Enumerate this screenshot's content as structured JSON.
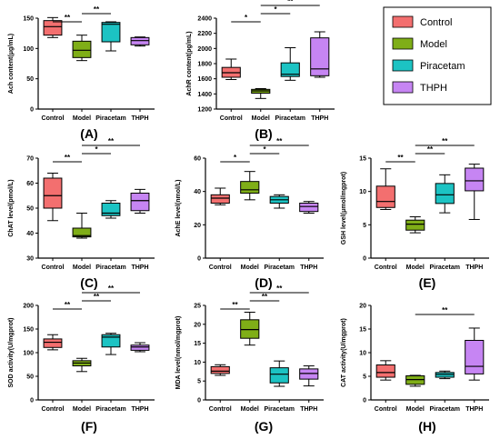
{
  "legend": [
    {
      "name": "Control",
      "color": "#f36f6f"
    },
    {
      "name": "Model",
      "color": "#7fae17"
    },
    {
      "name": "Piracetam",
      "color": "#1cc3c3"
    },
    {
      "name": "THPH",
      "color": "#c685f3"
    }
  ],
  "chart_data": [
    {
      "type": "box",
      "panel": "(A)",
      "ylabel": "Ach content(μg/mL)",
      "ylim": [
        0,
        150
      ],
      "yticks": [
        0,
        50,
        100,
        150
      ],
      "categories": [
        "Control",
        "Model",
        "Piracetam",
        "THPH"
      ],
      "boxes": [
        {
          "min": 118,
          "q1": 122,
          "median": 136,
          "q3": 146,
          "max": 151
        },
        {
          "min": 80,
          "q1": 85,
          "median": 97,
          "q3": 112,
          "max": 122
        },
        {
          "min": 96,
          "q1": 111,
          "median": 140,
          "q3": 143,
          "max": 144
        },
        {
          "min": 104,
          "q1": 106,
          "median": 113,
          "q3": 118,
          "max": 119
        }
      ],
      "significance": [
        {
          "from": 0,
          "to": 1,
          "label": "**",
          "level": 1
        },
        {
          "from": 1,
          "to": 2,
          "label": "**",
          "level": 2
        }
      ]
    },
    {
      "type": "box",
      "panel": "(B)",
      "ylabel": "AchR content(pg/mL)",
      "ylim": [
        1200,
        2400
      ],
      "yticks": [
        1200,
        1400,
        1600,
        1800,
        2000,
        2200,
        2400
      ],
      "categories": [
        "Control",
        "Model",
        "Piracetam",
        "THPH"
      ],
      "boxes": [
        {
          "min": 1590,
          "q1": 1620,
          "median": 1680,
          "q3": 1750,
          "max": 1860
        },
        {
          "min": 1340,
          "q1": 1410,
          "median": 1440,
          "q3": 1460,
          "max": 1470
        },
        {
          "min": 1580,
          "q1": 1630,
          "median": 1660,
          "q3": 1810,
          "max": 2010
        },
        {
          "min": 1620,
          "q1": 1640,
          "median": 1730,
          "q3": 2140,
          "max": 2220
        }
      ],
      "significance": [
        {
          "from": 0,
          "to": 1,
          "label": "*",
          "level": 1
        },
        {
          "from": 1,
          "to": 2,
          "label": "*",
          "level": 2
        },
        {
          "from": 1,
          "to": 3,
          "label": "**",
          "level": 3
        }
      ]
    },
    {
      "type": "box",
      "panel": "(C)",
      "ylabel": "ChAT level(pmol/L)",
      "ylim": [
        30,
        70
      ],
      "yticks": [
        30,
        40,
        50,
        60,
        70
      ],
      "categories": [
        "Control",
        "Model",
        "Piracetam",
        "THPH"
      ],
      "boxes": [
        {
          "min": 45,
          "q1": 50,
          "median": 55,
          "q3": 62,
          "max": 64
        },
        {
          "min": 38,
          "q1": 38.5,
          "median": 39,
          "q3": 42,
          "max": 48
        },
        {
          "min": 46,
          "q1": 47,
          "median": 48,
          "q3": 52,
          "max": 53
        },
        {
          "min": 48,
          "q1": 49,
          "median": 53,
          "q3": 56,
          "max": 57.5
        }
      ],
      "significance": [
        {
          "from": 0,
          "to": 1,
          "label": "**",
          "level": 1
        },
        {
          "from": 1,
          "to": 2,
          "label": "*",
          "level": 2
        },
        {
          "from": 1,
          "to": 3,
          "label": "**",
          "level": 3
        }
      ]
    },
    {
      "type": "box",
      "panel": "(D)",
      "ylabel": "AchE level(nmol/L)",
      "ylim": [
        0,
        60
      ],
      "yticks": [
        0,
        20,
        40,
        60
      ],
      "categories": [
        "Control",
        "Model",
        "Piracetam",
        "THPH"
      ],
      "boxes": [
        {
          "min": 32,
          "q1": 33,
          "median": 36,
          "q3": 38,
          "max": 42
        },
        {
          "min": 35,
          "q1": 39,
          "median": 41,
          "q3": 46,
          "max": 52
        },
        {
          "min": 30,
          "q1": 33,
          "median": 35,
          "q3": 37,
          "max": 38
        },
        {
          "min": 27,
          "q1": 28,
          "median": 31,
          "q3": 33,
          "max": 34
        }
      ],
      "significance": [
        {
          "from": 0,
          "to": 1,
          "label": "*",
          "level": 1
        },
        {
          "from": 1,
          "to": 2,
          "label": "*",
          "level": 2
        },
        {
          "from": 1,
          "to": 3,
          "label": "**",
          "level": 3
        }
      ]
    },
    {
      "type": "box",
      "panel": "(E)",
      "ylabel": "GSH level(μmol/mgprot)",
      "ylim": [
        0,
        15
      ],
      "yticks": [
        0,
        5,
        10,
        15
      ],
      "categories": [
        "Control",
        "Model",
        "Piracetam",
        "THPH"
      ],
      "boxes": [
        {
          "min": 7.3,
          "q1": 7.6,
          "median": 8.5,
          "q3": 10.8,
          "max": 13.4
        },
        {
          "min": 3.8,
          "q1": 4.2,
          "median": 5.1,
          "q3": 5.7,
          "max": 6.2
        },
        {
          "min": 6.8,
          "q1": 8.2,
          "median": 9.5,
          "q3": 11.2,
          "max": 12.5
        },
        {
          "min": 5.8,
          "q1": 10.1,
          "median": 11.6,
          "q3": 13.5,
          "max": 14.1
        }
      ],
      "significance": [
        {
          "from": 0,
          "to": 1,
          "label": "**",
          "level": 1
        },
        {
          "from": 1,
          "to": 2,
          "label": "**",
          "level": 2
        },
        {
          "from": 1,
          "to": 3,
          "label": "**",
          "level": 3
        }
      ]
    },
    {
      "type": "box",
      "panel": "(F)",
      "ylabel": "SOD activity(U/mgprot)",
      "ylim": [
        0,
        200
      ],
      "yticks": [
        0,
        50,
        100,
        150,
        200
      ],
      "categories": [
        "Control",
        "Model",
        "Piracetam",
        "THPH"
      ],
      "boxes": [
        {
          "min": 106,
          "q1": 111,
          "median": 122,
          "q3": 129,
          "max": 138
        },
        {
          "min": 60,
          "q1": 72,
          "median": 78,
          "q3": 83,
          "max": 88
        },
        {
          "min": 96,
          "q1": 112,
          "median": 133,
          "q3": 138,
          "max": 141
        },
        {
          "min": 102,
          "q1": 105,
          "median": 112,
          "q3": 116,
          "max": 121
        }
      ],
      "significance": [
        {
          "from": 0,
          "to": 1,
          "label": "**",
          "level": 1
        },
        {
          "from": 1,
          "to": 2,
          "label": "**",
          "level": 2
        },
        {
          "from": 1,
          "to": 3,
          "label": "**",
          "level": 3
        }
      ]
    },
    {
      "type": "box",
      "panel": "(G)",
      "ylabel": "MDA level(nmol/mgprot)",
      "ylim": [
        0,
        25
      ],
      "yticks": [
        0,
        5,
        10,
        15,
        20,
        25
      ],
      "categories": [
        "Control",
        "Model",
        "Piracetam",
        "THPH"
      ],
      "boxes": [
        {
          "min": 6.5,
          "q1": 7,
          "median": 7.6,
          "q3": 8.8,
          "max": 9.3
        },
        {
          "min": 14.5,
          "q1": 16.3,
          "median": 18.6,
          "q3": 21.2,
          "max": 23.2
        },
        {
          "min": 3.6,
          "q1": 4.5,
          "median": 6.8,
          "q3": 8.5,
          "max": 10.3
        },
        {
          "min": 3.7,
          "q1": 5.5,
          "median": 7,
          "q3": 8.2,
          "max": 9
        }
      ],
      "significance": [
        {
          "from": 0,
          "to": 1,
          "label": "**",
          "level": 1
        },
        {
          "from": 1,
          "to": 2,
          "label": "**",
          "level": 2
        },
        {
          "from": 1,
          "to": 3,
          "label": "**",
          "level": 3
        }
      ]
    },
    {
      "type": "box",
      "panel": "(H)",
      "ylabel": "CAT activity(U/mgprot)",
      "ylim": [
        0,
        20
      ],
      "yticks": [
        0,
        5,
        10,
        15,
        20
      ],
      "categories": [
        "Control",
        "Model",
        "Piracetam",
        "THPH"
      ],
      "boxes": [
        {
          "min": 4.2,
          "q1": 4.8,
          "median": 5.8,
          "q3": 7.4,
          "max": 8.3
        },
        {
          "min": 2.9,
          "q1": 3.3,
          "median": 4.3,
          "q3": 5.1,
          "max": 5.2
        },
        {
          "min": 4.5,
          "q1": 4.8,
          "median": 5.4,
          "q3": 5.8,
          "max": 6.1
        },
        {
          "min": 4.2,
          "q1": 5.5,
          "median": 7.1,
          "q3": 12.6,
          "max": 15.2
        }
      ],
      "significance": [
        {
          "from": 1,
          "to": 3,
          "label": "**",
          "level": 1
        }
      ]
    }
  ]
}
